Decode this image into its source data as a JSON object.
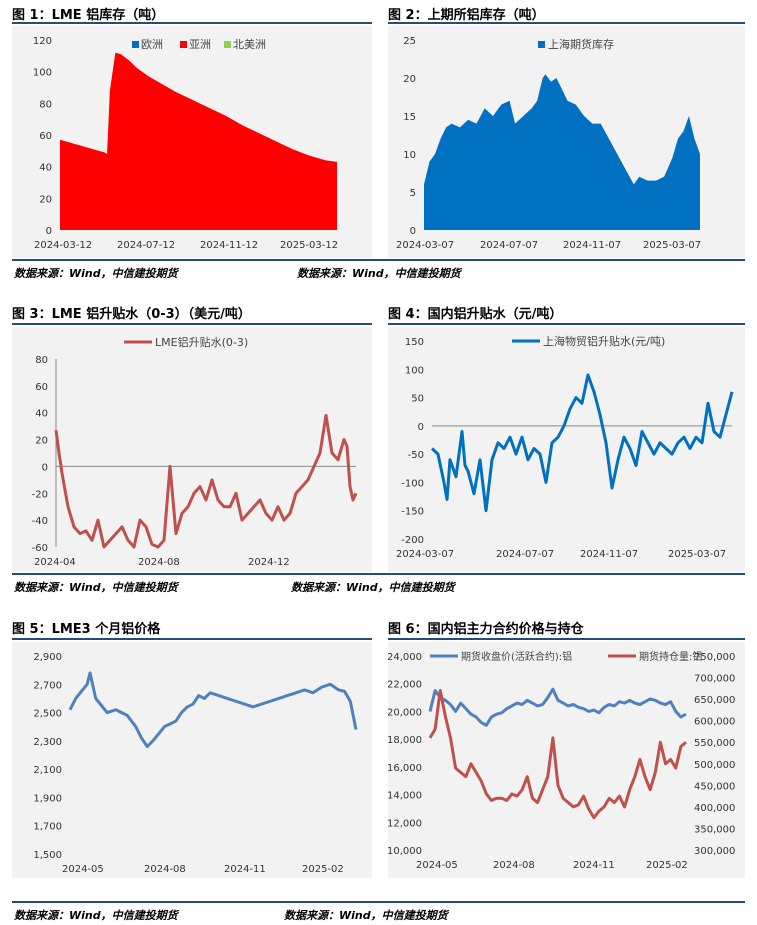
{
  "source_left": "数据来源：Wind，中信建投期货",
  "source_right": "数据来源：Wind，中信建投期货",
  "colors": {
    "rule": "#1f4e79",
    "red": "#ff0000",
    "blue": "#0070c0",
    "steel": "#4f81bd",
    "darkred": "#c0504d",
    "green": "#92d050",
    "dark": "#1f4e79"
  },
  "chart_data": [
    {
      "id": "fig1",
      "title": "图 1：LME 铝库存（吨）",
      "type": "area",
      "legend": [
        "欧洲",
        "亚洲",
        "北美洲"
      ],
      "series_name": "亚洲",
      "x": [
        0,
        0.16,
        0.17,
        0.18,
        0.2,
        0.22,
        0.25,
        0.28,
        0.32,
        0.36,
        0.42,
        0.48,
        0.54,
        0.6,
        0.66,
        0.72,
        0.78,
        0.84,
        0.9,
        0.96,
        1.0
      ],
      "values": [
        57,
        49,
        48,
        88,
        112,
        111,
        107,
        102,
        97,
        93,
        87,
        82,
        77,
        72,
        66,
        61,
        56,
        51,
        47,
        44,
        43
      ],
      "ylim": [
        0,
        120
      ],
      "yticks": [
        0,
        20,
        40,
        60,
        80,
        100,
        120
      ],
      "xticks": [
        "2024-03-12",
        "2024-07-12",
        "2024-11-12",
        "2025-03-12"
      ]
    },
    {
      "id": "fig2",
      "title": "图 2：上期所铝库存（吨）",
      "type": "area",
      "legend": [
        "上海期货库存"
      ],
      "x": [
        0,
        0.02,
        0.04,
        0.06,
        0.08,
        0.1,
        0.13,
        0.16,
        0.19,
        0.22,
        0.25,
        0.28,
        0.31,
        0.33,
        0.36,
        0.39,
        0.41,
        0.43,
        0.44,
        0.46,
        0.48,
        0.5,
        0.52,
        0.55,
        0.58,
        0.61,
        0.64,
        0.67,
        0.7,
        0.73,
        0.76,
        0.78,
        0.81,
        0.84,
        0.87,
        0.9,
        0.92,
        0.94,
        0.96,
        0.98,
        1.0
      ],
      "values": [
        6,
        9,
        10,
        12,
        13.5,
        14,
        13.5,
        14.5,
        14,
        16,
        15,
        16.5,
        17,
        14,
        15,
        16,
        17,
        20,
        20.5,
        19.5,
        20,
        18.5,
        17,
        16.5,
        15,
        14,
        14,
        12,
        10,
        8,
        6,
        7,
        6.5,
        6.5,
        7,
        9.5,
        12,
        13,
        15,
        12,
        10
      ],
      "ylim": [
        0,
        25
      ],
      "yticks": [
        0,
        5,
        10,
        15,
        20,
        25
      ],
      "xticks": [
        "2024-03-07",
        "2024-07-07",
        "2024-11-07",
        "2025-03-07"
      ]
    },
    {
      "id": "fig3",
      "title": "图 3：LME 铝升贴水（0-3）（美元/吨）",
      "type": "line",
      "legend": [
        "LME铝升贴水(0-3)"
      ],
      "x": [
        0,
        0.01,
        0.02,
        0.04,
        0.06,
        0.08,
        0.1,
        0.12,
        0.14,
        0.16,
        0.18,
        0.2,
        0.22,
        0.24,
        0.26,
        0.28,
        0.3,
        0.32,
        0.34,
        0.36,
        0.38,
        0.4,
        0.42,
        0.44,
        0.46,
        0.48,
        0.5,
        0.52,
        0.54,
        0.56,
        0.58,
        0.6,
        0.62,
        0.64,
        0.66,
        0.68,
        0.7,
        0.72,
        0.74,
        0.76,
        0.78,
        0.8,
        0.82,
        0.84,
        0.86,
        0.88,
        0.9,
        0.92,
        0.94,
        0.96,
        0.97,
        0.98,
        0.99,
        1.0
      ],
      "values": [
        27,
        10,
        -5,
        -30,
        -45,
        -50,
        -48,
        -55,
        -40,
        -60,
        -55,
        -50,
        -45,
        -55,
        -60,
        -40,
        -45,
        -58,
        -60,
        -55,
        0,
        -50,
        -35,
        -30,
        -20,
        -15,
        -25,
        -10,
        -25,
        -30,
        -30,
        -20,
        -40,
        -35,
        -30,
        -25,
        -35,
        -40,
        -30,
        -40,
        -35,
        -20,
        -15,
        -10,
        0,
        10,
        38,
        10,
        5,
        20,
        15,
        -15,
        -25,
        -20
      ],
      "ylim": [
        -60,
        80
      ],
      "yticks": [
        -60,
        -40,
        -20,
        0,
        20,
        40,
        60,
        80
      ],
      "xticks": [
        "2024-04",
        "2024-08",
        "2024-12"
      ]
    },
    {
      "id": "fig4",
      "title": "图 4：国内铝升贴水（元/吨）",
      "type": "line",
      "legend": [
        "上海物贸铝升贴水(元/吨)"
      ],
      "x": [
        0,
        0.02,
        0.04,
        0.05,
        0.06,
        0.08,
        0.1,
        0.11,
        0.12,
        0.14,
        0.16,
        0.18,
        0.2,
        0.22,
        0.24,
        0.26,
        0.28,
        0.3,
        0.32,
        0.34,
        0.36,
        0.38,
        0.4,
        0.42,
        0.44,
        0.46,
        0.48,
        0.5,
        0.52,
        0.54,
        0.56,
        0.58,
        0.6,
        0.62,
        0.64,
        0.66,
        0.68,
        0.7,
        0.72,
        0.74,
        0.76,
        0.78,
        0.8,
        0.82,
        0.84,
        0.86,
        0.88,
        0.9,
        0.92,
        0.94,
        0.96,
        0.98,
        1.0
      ],
      "values": [
        -40,
        -50,
        -100,
        -130,
        -60,
        -90,
        -10,
        -70,
        -80,
        -120,
        -60,
        -150,
        -60,
        -30,
        -40,
        -20,
        -50,
        -20,
        -60,
        -40,
        -50,
        -100,
        -30,
        -20,
        0,
        30,
        50,
        40,
        90,
        60,
        20,
        -30,
        -110,
        -60,
        -20,
        -40,
        -70,
        -10,
        -30,
        -50,
        -30,
        -40,
        -50,
        -30,
        -20,
        -40,
        -20,
        -30,
        40,
        -10,
        -20,
        20,
        60
      ],
      "ylim": [
        -200,
        150
      ],
      "yticks": [
        -200,
        -150,
        -100,
        -50,
        0,
        50,
        100,
        150
      ],
      "xticks": [
        "2024-03-07",
        "2024-07-07",
        "2024-11-07",
        "2025-03-07"
      ]
    },
    {
      "id": "fig5",
      "title": "图 5：LME3 个月铝价格",
      "type": "line",
      "legend": [],
      "x": [
        0,
        0.02,
        0.04,
        0.06,
        0.07,
        0.09,
        0.11,
        0.13,
        0.16,
        0.2,
        0.23,
        0.25,
        0.27,
        0.29,
        0.31,
        0.33,
        0.35,
        0.37,
        0.39,
        0.41,
        0.43,
        0.45,
        0.47,
        0.49,
        0.52,
        0.55,
        0.58,
        0.61,
        0.64,
        0.67,
        0.7,
        0.73,
        0.76,
        0.79,
        0.82,
        0.85,
        0.88,
        0.91,
        0.94,
        0.96,
        0.98,
        1.0
      ],
      "values": [
        2520,
        2600,
        2650,
        2700,
        2780,
        2600,
        2550,
        2500,
        2520,
        2480,
        2400,
        2320,
        2260,
        2300,
        2350,
        2400,
        2420,
        2440,
        2500,
        2540,
        2560,
        2620,
        2600,
        2640,
        2620,
        2600,
        2580,
        2560,
        2540,
        2560,
        2580,
        2600,
        2620,
        2640,
        2660,
        2640,
        2680,
        2700,
        2660,
        2650,
        2580,
        2380
      ],
      "ylim": [
        1500,
        2900
      ],
      "yticks": [
        1500,
        1700,
        1900,
        2100,
        2300,
        2500,
        2700,
        2900
      ],
      "xticks": [
        "2024-05",
        "2024-08",
        "2024-11",
        "2025-02"
      ]
    },
    {
      "id": "fig6",
      "title": "图 6：国内铝主力合约价格与持仓",
      "type": "line",
      "legend": [
        "期货收盘价(活跃合约):铝",
        "期货持仓量:铝"
      ],
      "x": [
        0,
        0.02,
        0.04,
        0.06,
        0.08,
        0.1,
        0.12,
        0.14,
        0.16,
        0.18,
        0.2,
        0.22,
        0.24,
        0.26,
        0.28,
        0.3,
        0.32,
        0.34,
        0.36,
        0.38,
        0.4,
        0.42,
        0.44,
        0.46,
        0.48,
        0.5,
        0.52,
        0.54,
        0.56,
        0.58,
        0.6,
        0.62,
        0.64,
        0.66,
        0.68,
        0.7,
        0.72,
        0.74,
        0.76,
        0.78,
        0.8,
        0.82,
        0.84,
        0.86,
        0.88,
        0.9,
        0.92,
        0.94,
        0.96,
        0.98,
        1.0
      ],
      "series": [
        {
          "name": "期货收盘价(活跃合约):铝",
          "axis": "left",
          "values": [
            20000,
            21500,
            21000,
            20800,
            20500,
            20000,
            20600,
            20200,
            19800,
            19600,
            19200,
            19000,
            19600,
            19800,
            19900,
            20200,
            20400,
            20600,
            20500,
            20800,
            20600,
            20400,
            20500,
            21000,
            21600,
            20800,
            20600,
            20400,
            20500,
            20300,
            20200,
            20000,
            20100,
            19900,
            20300,
            20500,
            20400,
            20700,
            20600,
            20800,
            20600,
            20500,
            20700,
            20900,
            20800,
            20600,
            20500,
            20700,
            20000,
            19600,
            19800
          ]
        },
        {
          "name": "期货持仓量:铝",
          "axis": "right",
          "values": [
            560000,
            580000,
            670000,
            610000,
            560000,
            490000,
            480000,
            470000,
            500000,
            480000,
            460000,
            430000,
            415000,
            420000,
            420000,
            415000,
            430000,
            425000,
            440000,
            470000,
            420000,
            410000,
            440000,
            470000,
            560000,
            450000,
            420000,
            410000,
            400000,
            405000,
            425000,
            395000,
            375000,
            390000,
            400000,
            420000,
            410000,
            425000,
            400000,
            440000,
            470000,
            510000,
            470000,
            440000,
            480000,
            550000,
            500000,
            510000,
            490000,
            540000,
            550000
          ]
        }
      ],
      "ylim": [
        10000,
        24000
      ],
      "yticks": [
        10000,
        12000,
        14000,
        16000,
        18000,
        20000,
        22000,
        24000
      ],
      "ylim2": [
        300000,
        750000
      ],
      "yticks2": [
        300000,
        350000,
        400000,
        450000,
        500000,
        550000,
        600000,
        650000,
        700000,
        750000
      ],
      "xticks": [
        "2024-05",
        "2024-08",
        "2024-11",
        "2025-02"
      ]
    }
  ]
}
